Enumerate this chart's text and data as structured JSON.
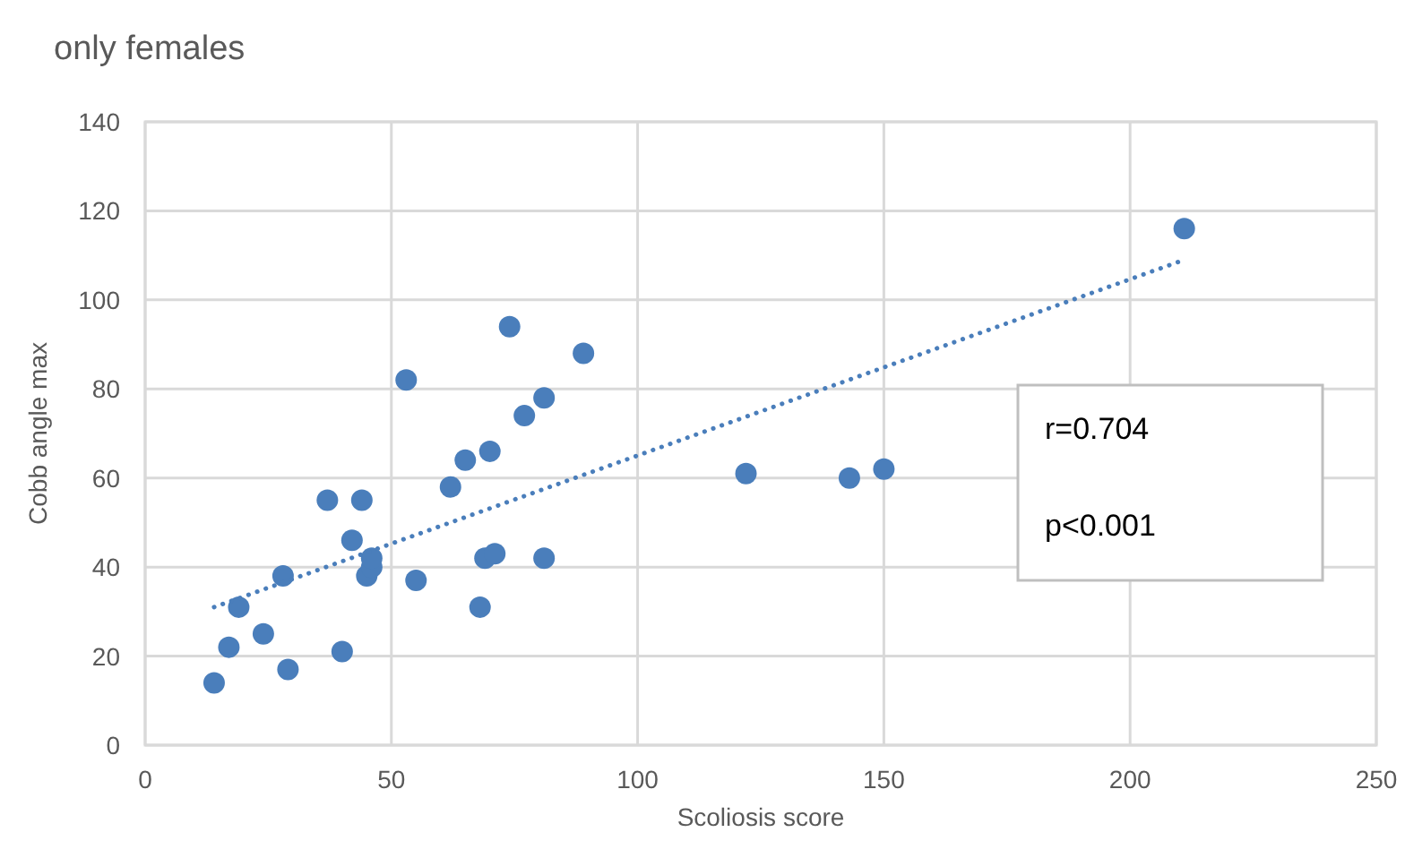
{
  "chart_data": {
    "type": "scatter",
    "title": "only females",
    "xlabel": "Scoliosis score",
    "ylabel": "Cobb angle max",
    "xlim": [
      0,
      250
    ],
    "xticks": [
      0,
      50,
      100,
      150,
      200,
      250
    ],
    "ylim": [
      0,
      140
    ],
    "yticks": [
      0,
      20,
      40,
      60,
      80,
      100,
      120,
      140
    ],
    "grid": true,
    "series": [
      {
        "color": "#4a7ebb",
        "marker": "circle",
        "x": [
          14,
          17,
          19,
          24,
          28,
          29,
          37,
          40,
          42,
          44,
          45,
          46,
          46,
          53,
          55,
          62,
          65,
          68,
          69,
          70,
          71,
          74,
          77,
          81,
          81,
          89,
          122,
          143,
          150,
          211
        ],
        "values": [
          14,
          22,
          31,
          25,
          38,
          17,
          55,
          21,
          46,
          55,
          38,
          40,
          42,
          82,
          37,
          58,
          64,
          31,
          42,
          66,
          43,
          94,
          74,
          78,
          42,
          88,
          61,
          60,
          62,
          116
        ]
      },
      {
        "type": "line",
        "color": "#4a7ebb",
        "marker": "none",
        "line_style": "dotted",
        "x": [
          14,
          211
        ],
        "values": [
          31,
          109
        ]
      }
    ],
    "annotations": [
      "r=0.704",
      "p<0.001"
    ]
  }
}
